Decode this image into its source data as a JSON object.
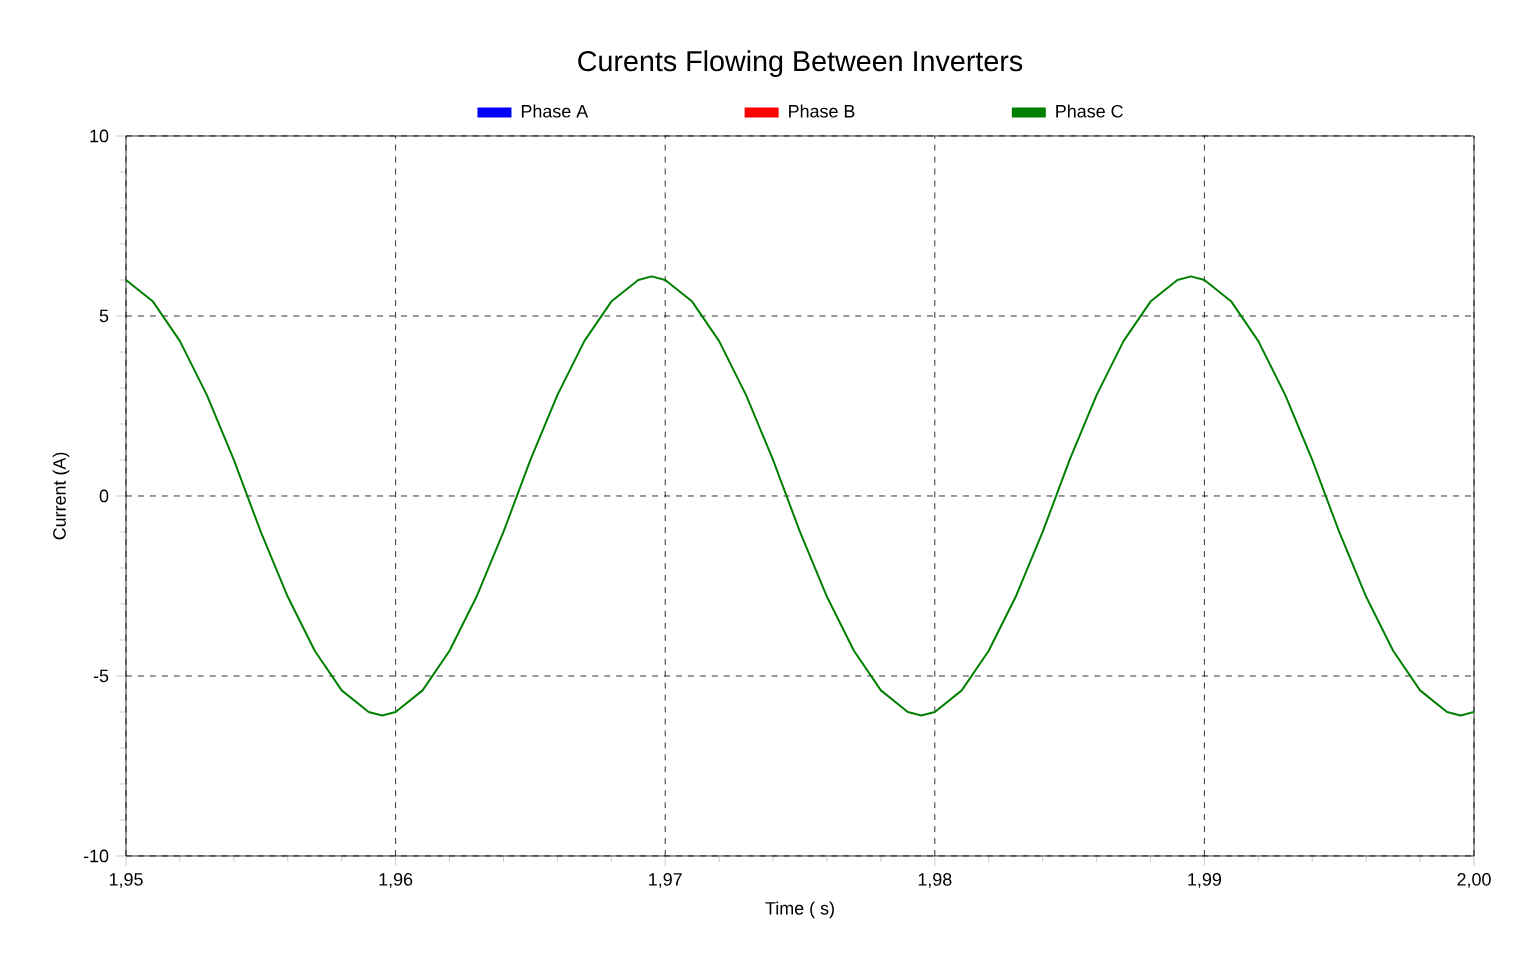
{
  "chart_data": {
    "type": "line",
    "title": "Curents Flowing Between Inverters",
    "xlabel": "Time ( s)",
    "ylabel": "Current (A)",
    "x": [
      1.95,
      1.951,
      1.952,
      1.953,
      1.954,
      1.955,
      1.956,
      1.957,
      1.958,
      1.959,
      1.9595,
      1.96,
      1.961,
      1.962,
      1.963,
      1.964,
      1.965,
      1.966,
      1.967,
      1.968,
      1.969,
      1.9695,
      1.97,
      1.971,
      1.972,
      1.973,
      1.974,
      1.975,
      1.976,
      1.977,
      1.978,
      1.979,
      1.9795,
      1.98,
      1.981,
      1.982,
      1.983,
      1.984,
      1.985,
      1.986,
      1.987,
      1.988,
      1.989,
      1.9895,
      1.99,
      1.991,
      1.992,
      1.993,
      1.994,
      1.995,
      1.996,
      1.997,
      1.998,
      1.999,
      1.9995,
      2.0
    ],
    "series": [
      {
        "name": "Phase A",
        "color": "#0000ff",
        "values": [
          null,
          null,
          null,
          null,
          null,
          null,
          null,
          null,
          null,
          null,
          null,
          null,
          null,
          null,
          null,
          null,
          null,
          null,
          null,
          null,
          null,
          null,
          null,
          null,
          null,
          null,
          null,
          null,
          null,
          null,
          null,
          null,
          null,
          null,
          null,
          null,
          null,
          null,
          null,
          null,
          null,
          null,
          null,
          null,
          null,
          null,
          null,
          null,
          null,
          null,
          null,
          null,
          null,
          null,
          null,
          null
        ]
      },
      {
        "name": "Phase B",
        "color": "#ff0000",
        "values": [
          null,
          null,
          null,
          null,
          null,
          null,
          null,
          null,
          null,
          null,
          null,
          null,
          null,
          null,
          null,
          null,
          null,
          null,
          null,
          null,
          null,
          null,
          null,
          null,
          null,
          null,
          null,
          null,
          null,
          null,
          null,
          null,
          null,
          null,
          null,
          null,
          null,
          null,
          null,
          null,
          null,
          null,
          null,
          null,
          null,
          null,
          null,
          null,
          null,
          null,
          null,
          null,
          null,
          null,
          null,
          null
        ]
      },
      {
        "name": "Phase C",
        "color": "#008000",
        "values": [
          6.0,
          5.4,
          4.3,
          2.8,
          1.0,
          -1.0,
          -2.8,
          -4.3,
          -5.4,
          -6.0,
          -6.1,
          -6.0,
          -5.4,
          -4.3,
          -2.8,
          -1.0,
          1.0,
          2.8,
          4.3,
          5.4,
          6.0,
          6.1,
          6.0,
          5.4,
          4.3,
          2.8,
          1.0,
          -1.0,
          -2.8,
          -4.3,
          -5.4,
          -6.0,
          -6.1,
          -6.0,
          -5.4,
          -4.3,
          -2.8,
          -1.0,
          1.0,
          2.8,
          4.3,
          5.4,
          6.0,
          6.1,
          6.0,
          5.4,
          4.3,
          2.8,
          1.0,
          -1.0,
          -2.8,
          -4.3,
          -5.4,
          -6.0,
          -6.1,
          -6.0
        ]
      }
    ],
    "xlim": [
      1.95,
      2.0
    ],
    "ylim": [
      -10,
      10
    ],
    "xticks": [
      {
        "value": 1.95,
        "label": "1,95"
      },
      {
        "value": 1.96,
        "label": "1,96"
      },
      {
        "value": 1.97,
        "label": "1,97"
      },
      {
        "value": 1.98,
        "label": "1,98"
      },
      {
        "value": 1.99,
        "label": "1,99"
      },
      {
        "value": 2.0,
        "label": "2,00"
      }
    ],
    "yticks": [
      -10,
      -5,
      0,
      5,
      10
    ],
    "grid": true,
    "legend": "top"
  }
}
